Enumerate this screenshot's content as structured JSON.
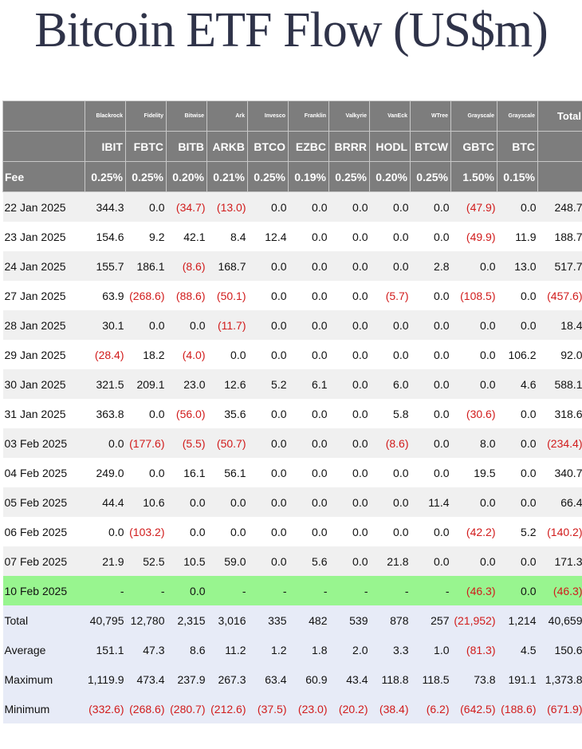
{
  "title": "Bitcoin ETF Flow (US$m)",
  "table": {
    "issuers": [
      "Blackrock",
      "Fidelity",
      "Bitwise",
      "Ark",
      "Invesco",
      "Franklin",
      "Valkyrie",
      "VanEck",
      "WTree",
      "Grayscale",
      "Grayscale"
    ],
    "total_header": "Total",
    "tickers": [
      "IBIT",
      "FBTC",
      "BITB",
      "ARKB",
      "BTCO",
      "EZBC",
      "BRRR",
      "HODL",
      "BTCW",
      "GBTC",
      "BTC"
    ],
    "fee_label": "Fee",
    "fees": [
      "0.25%",
      "0.25%",
      "0.20%",
      "0.21%",
      "0.25%",
      "0.19%",
      "0.25%",
      "0.20%",
      "0.25%",
      "1.50%",
      "0.15%"
    ],
    "rows": [
      {
        "date": "22 Jan 2025",
        "values": [
          "344.3",
          "0.0",
          "(34.7)",
          "(13.0)",
          "0.0",
          "0.0",
          "0.0",
          "0.0",
          "0.0",
          "(47.9)",
          "0.0",
          "248.7"
        ]
      },
      {
        "date": "23 Jan 2025",
        "values": [
          "154.6",
          "9.2",
          "42.1",
          "8.4",
          "12.4",
          "0.0",
          "0.0",
          "0.0",
          "0.0",
          "(49.9)",
          "11.9",
          "188.7"
        ]
      },
      {
        "date": "24 Jan 2025",
        "values": [
          "155.7",
          "186.1",
          "(8.6)",
          "168.7",
          "0.0",
          "0.0",
          "0.0",
          "0.0",
          "2.8",
          "0.0",
          "13.0",
          "517.7"
        ]
      },
      {
        "date": "27 Jan 2025",
        "values": [
          "63.9",
          "(268.6)",
          "(88.6)",
          "(50.1)",
          "0.0",
          "0.0",
          "0.0",
          "(5.7)",
          "0.0",
          "(108.5)",
          "0.0",
          "(457.6)"
        ]
      },
      {
        "date": "28 Jan 2025",
        "values": [
          "30.1",
          "0.0",
          "0.0",
          "(11.7)",
          "0.0",
          "0.0",
          "0.0",
          "0.0",
          "0.0",
          "0.0",
          "0.0",
          "18.4"
        ]
      },
      {
        "date": "29 Jan 2025",
        "values": [
          "(28.4)",
          "18.2",
          "(4.0)",
          "0.0",
          "0.0",
          "0.0",
          "0.0",
          "0.0",
          "0.0",
          "0.0",
          "106.2",
          "92.0"
        ]
      },
      {
        "date": "30 Jan 2025",
        "values": [
          "321.5",
          "209.1",
          "23.0",
          "12.6",
          "5.2",
          "6.1",
          "0.0",
          "6.0",
          "0.0",
          "0.0",
          "4.6",
          "588.1"
        ]
      },
      {
        "date": "31 Jan 2025",
        "values": [
          "363.8",
          "0.0",
          "(56.0)",
          "35.6",
          "0.0",
          "0.0",
          "0.0",
          "5.8",
          "0.0",
          "(30.6)",
          "0.0",
          "318.6"
        ]
      },
      {
        "date": "03 Feb 2025",
        "values": [
          "0.0",
          "(177.6)",
          "(5.5)",
          "(50.7)",
          "0.0",
          "0.0",
          "0.0",
          "(8.6)",
          "0.0",
          "8.0",
          "0.0",
          "(234.4)"
        ]
      },
      {
        "date": "04 Feb 2025",
        "values": [
          "249.0",
          "0.0",
          "16.1",
          "56.1",
          "0.0",
          "0.0",
          "0.0",
          "0.0",
          "0.0",
          "19.5",
          "0.0",
          "340.7"
        ]
      },
      {
        "date": "05 Feb 2025",
        "values": [
          "44.4",
          "10.6",
          "0.0",
          "0.0",
          "0.0",
          "0.0",
          "0.0",
          "0.0",
          "11.4",
          "0.0",
          "0.0",
          "66.4"
        ]
      },
      {
        "date": "06 Feb 2025",
        "values": [
          "0.0",
          "(103.2)",
          "0.0",
          "0.0",
          "0.0",
          "0.0",
          "0.0",
          "0.0",
          "0.0",
          "(42.2)",
          "5.2",
          "(140.2)"
        ]
      },
      {
        "date": "07 Feb 2025",
        "values": [
          "21.9",
          "52.5",
          "10.5",
          "59.0",
          "0.0",
          "5.6",
          "0.0",
          "21.8",
          "0.0",
          "0.0",
          "0.0",
          "171.3"
        ]
      },
      {
        "date": "10 Feb 2025",
        "highlight": true,
        "values": [
          "-",
          "-",
          "0.0",
          "-",
          "-",
          "-",
          "-",
          "-",
          "-",
          "(46.3)",
          "0.0",
          "(46.3)"
        ]
      }
    ],
    "summary": [
      {
        "label": "Total",
        "values": [
          "40,795",
          "12,780",
          "2,315",
          "3,016",
          "335",
          "482",
          "539",
          "878",
          "257",
          "(21,952)",
          "1,214",
          "40,659"
        ]
      },
      {
        "label": "Average",
        "values": [
          "151.1",
          "47.3",
          "8.6",
          "11.2",
          "1.2",
          "1.8",
          "2.0",
          "3.3",
          "1.0",
          "(81.3)",
          "4.5",
          "150.6"
        ]
      },
      {
        "label": "Maximum",
        "values": [
          "1,119.9",
          "473.4",
          "237.9",
          "267.3",
          "63.4",
          "60.9",
          "43.4",
          "118.8",
          "118.5",
          "73.8",
          "191.1",
          "1,373.8"
        ]
      },
      {
        "label": "Minimum",
        "values": [
          "(332.6)",
          "(268.6)",
          "(280.7)",
          "(212.6)",
          "(37.5)",
          "(23.0)",
          "(20.2)",
          "(38.4)",
          "(6.2)",
          "(642.5)",
          "(188.6)",
          "(671.9)"
        ]
      }
    ]
  },
  "colors": {
    "title": "#2f3349",
    "header_bg": "#7d7d7d",
    "negative": "#d11b1b",
    "highlight_row": "#98f58f",
    "summary_bg": "#e7ebf7",
    "stripe": "#f0f0f0"
  }
}
